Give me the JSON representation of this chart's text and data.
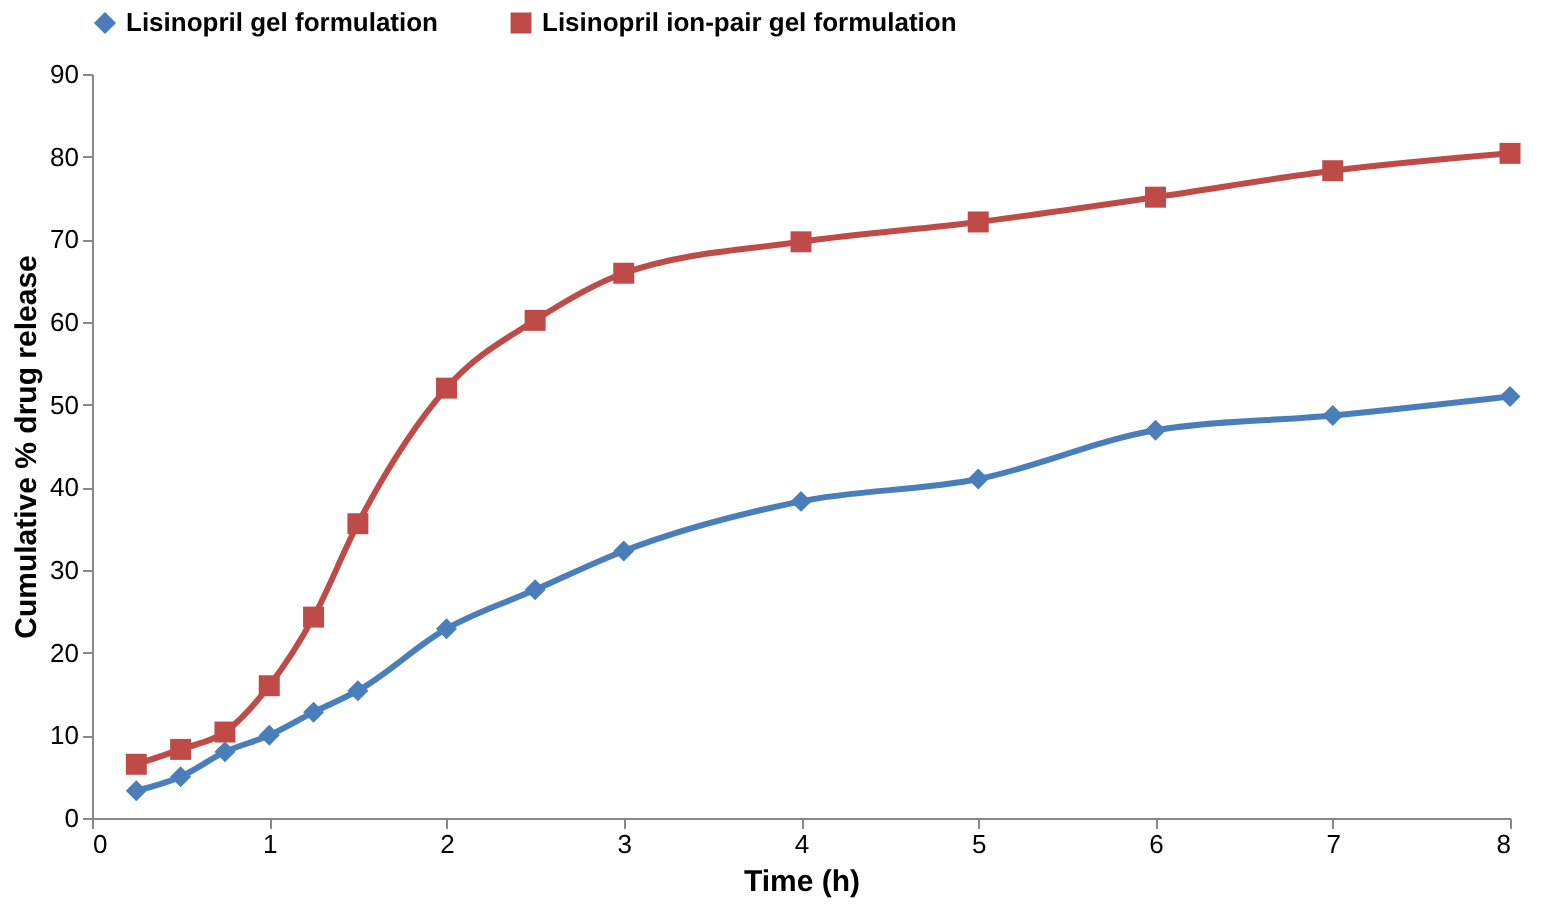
{
  "chart_data": {
    "type": "line",
    "xlabel": "Time (h)",
    "ylabel": "Cumulative % drug  release",
    "x": [
      0.25,
      0.5,
      0.75,
      1,
      1.25,
      1.5,
      2,
      2.5,
      3,
      4,
      5,
      6,
      7,
      8
    ],
    "series": [
      {
        "name": "Lisinopril  gel formulation",
        "color": "#4a7ebb",
        "marker": "diamond",
        "values": [
          3.3,
          5,
          8,
          10,
          12.8,
          15.4,
          22.9,
          27.6,
          32.3,
          38.3,
          41,
          46.9,
          48.7,
          51
        ]
      },
      {
        "name": "Lisinopril  ion-pair gel formulation",
        "color": "#be4b48",
        "marker": "square",
        "values": [
          6.5,
          8.3,
          10.4,
          16,
          24.3,
          35.6,
          52,
          60.2,
          65.9,
          69.7,
          72.1,
          75.1,
          78.3,
          80.4
        ]
      }
    ],
    "xlim": [
      0,
      8
    ],
    "xticks": [
      0,
      1,
      2,
      3,
      4,
      5,
      6,
      7,
      8
    ],
    "ylim": [
      0,
      90
    ],
    "yticks": [
      0,
      10,
      20,
      30,
      40,
      50,
      60,
      70,
      80,
      90
    ],
    "grid": false,
    "legend": "top",
    "line_style": "solid"
  }
}
